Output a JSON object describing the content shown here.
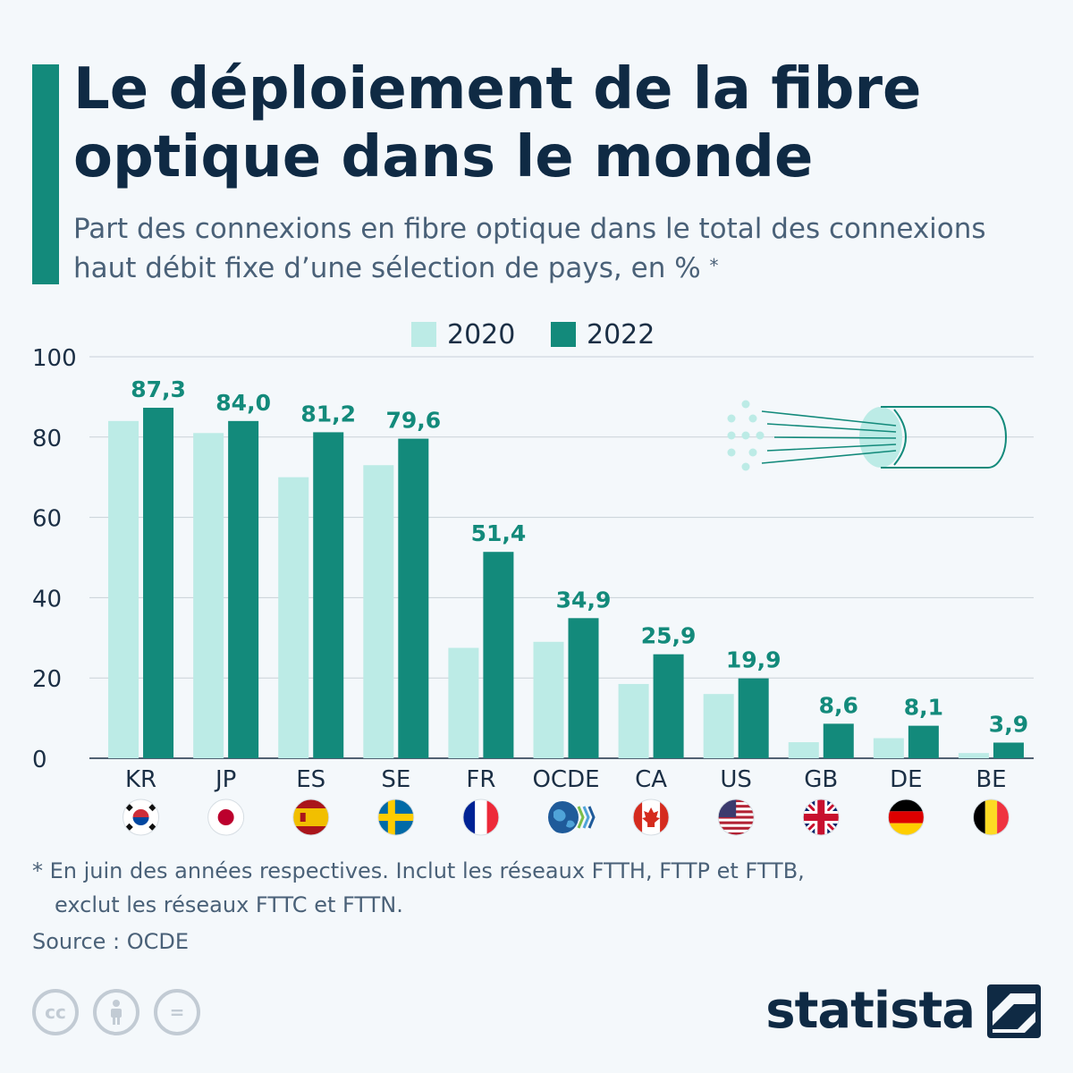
{
  "header": {
    "title": "Le déploiement de la fibre optique dans le monde",
    "subtitle": "Part des connexions en fibre optique dans le total des connexions haut débit fixe d’une sélection de pays, en %",
    "subtitle_mark": "*"
  },
  "footnote": {
    "line1": "* En juin des années respectives. Inclut les réseaux FTTH, FTTP et FTTB,",
    "line2": "exclut les réseaux FTTC et FTTN."
  },
  "source": "Source : OCDE",
  "brand": {
    "name": "statista"
  },
  "colors": {
    "accent": "#138a7b",
    "series_2020": "#bcebe6",
    "series_2022": "#138a7b",
    "grid": "#c9d1d8",
    "label": "#138a7b",
    "axis_text": "#1b2f45"
  },
  "chart_data": {
    "type": "bar",
    "categories": [
      "KR",
      "JP",
      "ES",
      "SE",
      "FR",
      "OCDE",
      "CA",
      "US",
      "GB",
      "DE",
      "BE"
    ],
    "series": [
      {
        "name": "2020",
        "values": [
          84,
          81,
          70,
          73,
          27.5,
          29,
          18.5,
          16,
          4,
          5,
          1.3
        ]
      },
      {
        "name": "2022",
        "values": [
          87.3,
          84.0,
          81.2,
          79.6,
          51.4,
          34.9,
          25.9,
          19.9,
          8.6,
          8.1,
          3.9
        ]
      }
    ],
    "data_labels": [
      "87,3",
      "84,0",
      "81,2",
      "79,6",
      "51,4",
      "34,9",
      "25,9",
      "19,9",
      "8,6",
      "8,1",
      "3,9"
    ],
    "ylim": [
      0,
      100
    ],
    "yticks": [
      0,
      20,
      40,
      60,
      80,
      100
    ],
    "grid": true,
    "legend_position": "top-center",
    "category_flags": [
      "south-korea-flag",
      "japan-flag",
      "spain-flag",
      "sweden-flag",
      "france-flag",
      "oecd-globe-icon",
      "canada-flag",
      "usa-flag",
      "uk-flag",
      "germany-flag",
      "belgium-flag"
    ]
  },
  "icons": {
    "decoration": "fiber-optic-cable-icon",
    "cc": [
      "cc-icon",
      "attribution-icon",
      "no-derivatives-icon"
    ],
    "cc_labels": [
      "cc",
      "",
      "="
    ],
    "brand_mark": "statista-logo-icon"
  }
}
